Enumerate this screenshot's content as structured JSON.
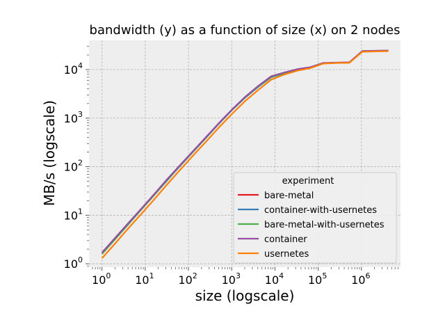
{
  "chart_data": {
    "type": "line",
    "title": "bandwidth (y) as a function of size (x) on 2 nodes",
    "xlabel": "size (logscale)",
    "ylabel": "MB/s (logscale)",
    "xscale": "log",
    "yscale": "log",
    "xlim": [
      0.5,
      8000000
    ],
    "ylim": [
      0.85,
      40000
    ],
    "x_ticks": [
      {
        "value": 1,
        "base": "10",
        "exp": "0"
      },
      {
        "value": 10,
        "base": "10",
        "exp": "1"
      },
      {
        "value": 100,
        "base": "10",
        "exp": "2"
      },
      {
        "value": 1000,
        "base": "10",
        "exp": "3"
      },
      {
        "value": 10000,
        "base": "10",
        "exp": "4"
      },
      {
        "value": 100000,
        "base": "10",
        "exp": "5"
      },
      {
        "value": 1000000,
        "base": "10",
        "exp": "6"
      }
    ],
    "y_ticks": [
      {
        "value": 1,
        "base": "10",
        "exp": "0"
      },
      {
        "value": 10,
        "base": "10",
        "exp": "1"
      },
      {
        "value": 100,
        "base": "10",
        "exp": "2"
      },
      {
        "value": 1000,
        "base": "10",
        "exp": "3"
      },
      {
        "value": 10000,
        "base": "10",
        "exp": "4"
      }
    ],
    "grid": true,
    "legend": {
      "title": "experiment",
      "placement": "lower-right"
    },
    "x": [
      1,
      2,
      4,
      8,
      16,
      32,
      64,
      128,
      256,
      512,
      1024,
      2048,
      4096,
      8192,
      16384,
      32768,
      65536,
      131072,
      262144,
      524288,
      1048576,
      2097152,
      4194304
    ],
    "series": [
      {
        "name": "bare-metal",
        "color": "#e41a1c",
        "values": [
          1.6,
          3.2,
          6.5,
          13,
          26,
          53,
          105,
          205,
          400,
          790,
          1500,
          2700,
          4500,
          7000,
          8500,
          10000,
          11000,
          13500,
          13800,
          14000,
          24000,
          24300,
          24500
        ]
      },
      {
        "name": "container-with-usernetes",
        "color": "#377eb8",
        "values": [
          1.6,
          3.2,
          6.4,
          13,
          26,
          52,
          104,
          203,
          395,
          780,
          1480,
          2650,
          4400,
          6900,
          8400,
          9900,
          11000,
          13500,
          13800,
          14000,
          24000,
          24300,
          24500
        ]
      },
      {
        "name": "bare-metal-with-usernetes",
        "color": "#4daf4a",
        "values": [
          1.6,
          3.2,
          6.5,
          13,
          26,
          53,
          105,
          205,
          400,
          790,
          1500,
          2700,
          4500,
          7000,
          8500,
          10000,
          11000,
          13500,
          13800,
          14000,
          24000,
          24300,
          24500
        ]
      },
      {
        "name": "container",
        "color": "#984ea3",
        "values": [
          1.7,
          3.4,
          6.8,
          13.5,
          27,
          55,
          108,
          210,
          410,
          800,
          1520,
          2750,
          4600,
          7300,
          8700,
          10200,
          11200,
          13700,
          13900,
          14100,
          24100,
          24400,
          24600
        ]
      },
      {
        "name": "usernetes",
        "color": "#ff7f00",
        "values": [
          1.3,
          2.6,
          5.3,
          10.5,
          21,
          43,
          86,
          170,
          330,
          650,
          1230,
          2250,
          3800,
          6200,
          7900,
          9500,
          10700,
          13300,
          13700,
          13800,
          23300,
          23700,
          24000
        ]
      }
    ]
  }
}
